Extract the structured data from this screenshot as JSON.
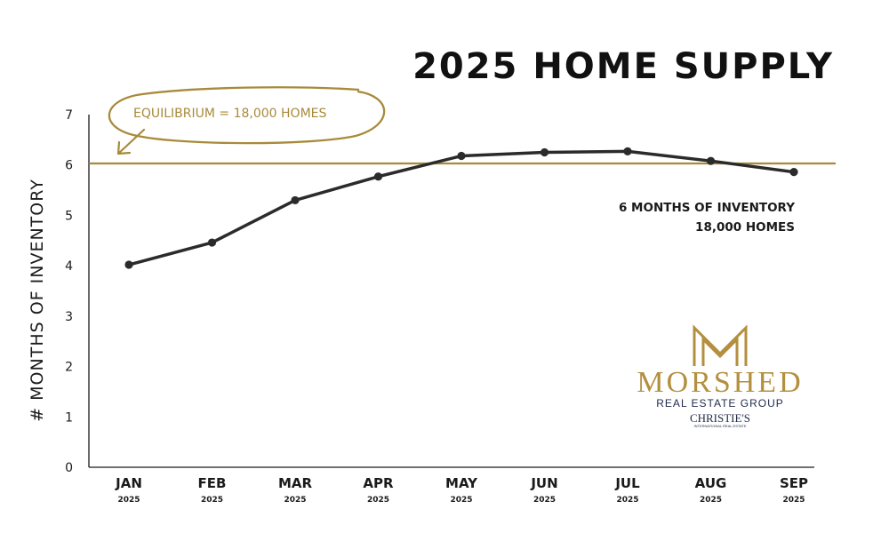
{
  "chart_data": {
    "type": "line",
    "title": "2025 HOME SUPPLY",
    "ylabel": "# MONTHS OF INVENTORY",
    "xlabel": "",
    "ylim": [
      0,
      7
    ],
    "yticks": [
      "0",
      "1",
      "2",
      "3",
      "4",
      "5",
      "6",
      "7"
    ],
    "categories": [
      "JAN",
      "FEB",
      "MAR",
      "APR",
      "MAY",
      "JUN",
      "JUL",
      "AUG",
      "SEP"
    ],
    "category_sublabels": [
      "2025",
      "2025",
      "2025",
      "2025",
      "2025",
      "2025",
      "2025",
      "2025",
      "2025"
    ],
    "series": [
      {
        "values": [
          4.02,
          4.46,
          5.3,
          5.77,
          6.18,
          6.25,
          6.27,
          6.08,
          5.86
        ]
      }
    ],
    "reference_line": {
      "value": 6.03,
      "label": "EQUILIBRIUM = 18,000 HOMES"
    },
    "annotation": [
      "6 MONTHS OF INVENTORY",
      "18,000 HOMES"
    ],
    "grid": false,
    "colors": {
      "line": "#2b2b2b",
      "reference": "#a88a3a",
      "text": "#1a1a1a"
    }
  },
  "logo": {
    "name": "MORSHED",
    "subtitle": "REAL ESTATE GROUP",
    "brand": "CHRISTIE'S",
    "brand_sub": "INTERNATIONAL REAL ESTATE",
    "colors": {
      "gold": "#b38f3e",
      "navy": "#1f2a4a"
    }
  }
}
